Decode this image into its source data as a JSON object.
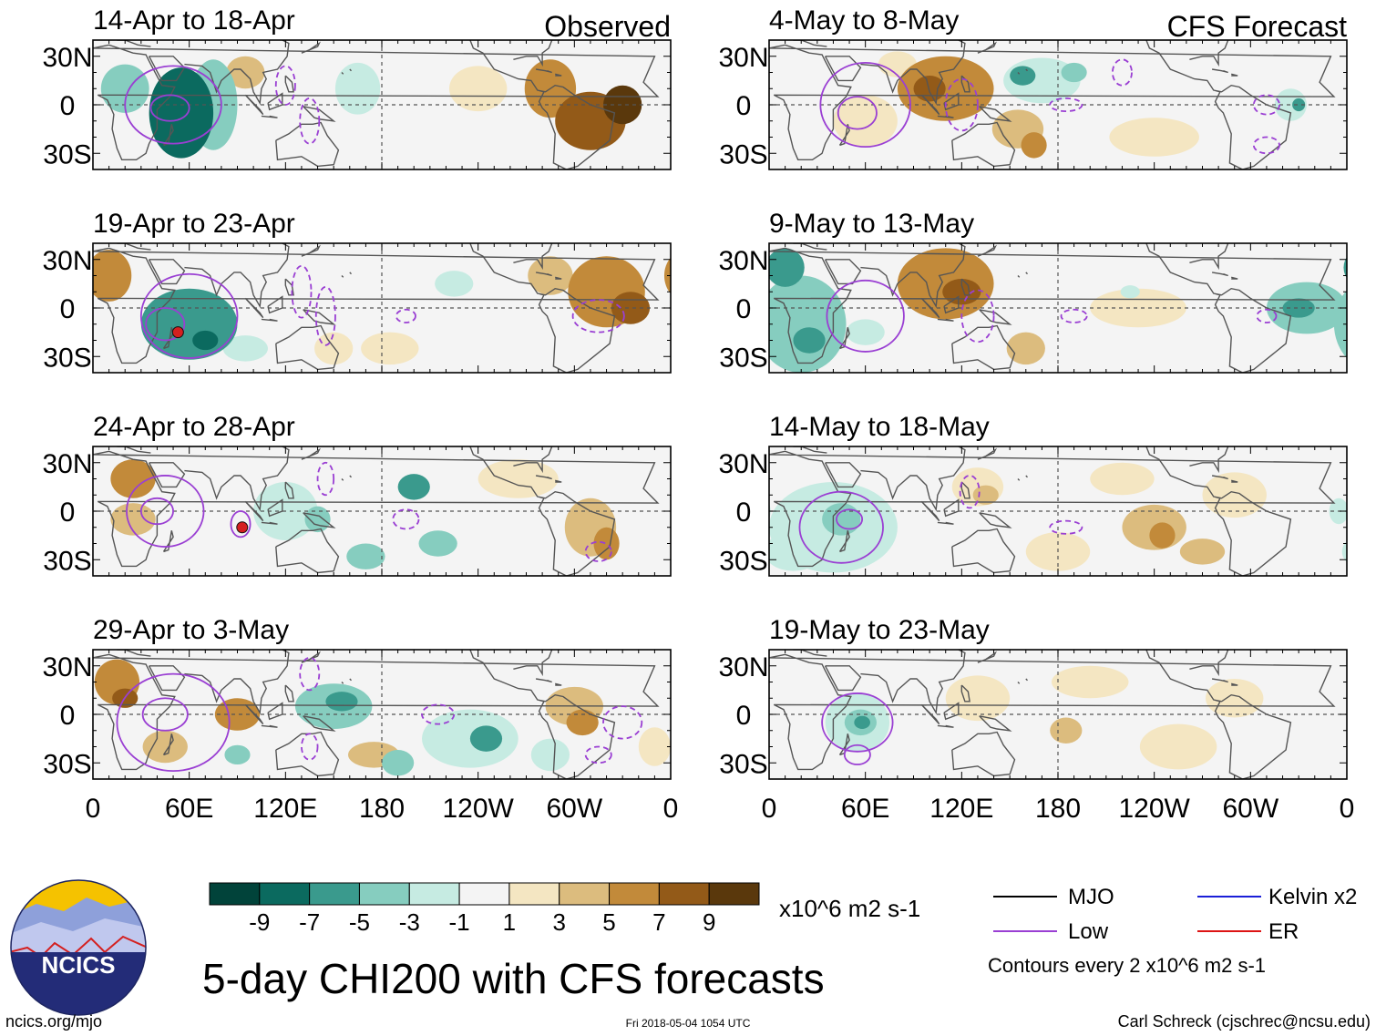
{
  "colors": {
    "scale": [
      "#01433a",
      "#0b6a5f",
      "#3a9a8d",
      "#86cdbf",
      "#c6ebe2",
      "#f4f4f4",
      "#f4e6c2",
      "#dcbc7e",
      "#c28a3a",
      "#935a18",
      "#5a380c"
    ],
    "mjo": "#000000",
    "low": "#9a3fd3",
    "kelvin": "#1a1fd8",
    "er": "#dd1414",
    "coast": "#555555",
    "grid": "#555555"
  },
  "chart_data": {
    "type": "heatmap",
    "variable": "5-day CHI200 with CFS forecasts",
    "units": "x10^6 m2 s-1",
    "colorbar": {
      "boundaries": [
        -10,
        -8,
        -6,
        -4,
        -2,
        0,
        2,
        4,
        6,
        8,
        10
      ],
      "tick_labels": [
        "-9",
        "-7",
        "-5",
        "-3",
        "-1",
        "1",
        "3",
        "5",
        "7",
        "9"
      ]
    },
    "x_ticks": [
      "0",
      "60E",
      "120E",
      "180",
      "120W",
      "60W",
      "0"
    ],
    "y_ticks": [
      "30N",
      "0",
      "30S"
    ],
    "xlim": [
      0,
      360
    ],
    "ylim": [
      -40,
      40
    ],
    "column_headers": [
      "Observed",
      "CFS Forecast"
    ],
    "panels": [
      {
        "period": "14-Apr to 18-Apr",
        "source": "Observed",
        "anomalies": [
          [
            55,
            -5,
            20,
            28,
            -9
          ],
          [
            20,
            10,
            15,
            15,
            -5
          ],
          [
            75,
            0,
            15,
            28,
            -5
          ],
          [
            165,
            10,
            14,
            16,
            -3
          ],
          [
            200,
            -10,
            14,
            12,
            -1
          ],
          [
            285,
            10,
            16,
            18,
            5
          ],
          [
            310,
            -10,
            22,
            18,
            7
          ],
          [
            330,
            0,
            12,
            12,
            9
          ],
          [
            240,
            10,
            18,
            14,
            1
          ],
          [
            95,
            20,
            12,
            10,
            3
          ]
        ],
        "low_contours": [
          [
            50,
            0,
            30,
            24
          ],
          [
            48,
            -2,
            12,
            8
          ],
          [
            120,
            12,
            6,
            12
          ],
          [
            135,
            -10,
            6,
            14
          ]
        ],
        "storms": []
      },
      {
        "period": "19-Apr to 23-Apr",
        "source": "Observed",
        "anomalies": [
          [
            10,
            20,
            14,
            16,
            5
          ],
          [
            60,
            -10,
            30,
            22,
            -7
          ],
          [
            70,
            -20,
            8,
            6,
            -9
          ],
          [
            95,
            -25,
            14,
            8,
            -3
          ],
          [
            200,
            5,
            40,
            12,
            -1
          ],
          [
            225,
            15,
            12,
            8,
            -3
          ],
          [
            285,
            20,
            14,
            12,
            3
          ],
          [
            320,
            10,
            24,
            22,
            5
          ],
          [
            335,
            0,
            12,
            10,
            7
          ],
          [
            150,
            -25,
            12,
            10,
            1
          ],
          [
            185,
            -25,
            18,
            10,
            1
          ]
        ],
        "low_contours": [
          [
            60,
            -5,
            30,
            26
          ],
          [
            45,
            -10,
            12,
            10
          ],
          [
            130,
            10,
            6,
            16
          ],
          [
            145,
            -5,
            6,
            18
          ],
          [
            195,
            -5,
            6,
            4
          ],
          [
            315,
            -5,
            16,
            10
          ]
        ],
        "storms": [
          [
            53,
            -15
          ]
        ]
      },
      {
        "period": "24-Apr to 28-Apr",
        "source": "Observed",
        "anomalies": [
          [
            25,
            20,
            14,
            12,
            5
          ],
          [
            25,
            -5,
            14,
            10,
            3
          ],
          [
            120,
            0,
            20,
            18,
            -3
          ],
          [
            140,
            -5,
            8,
            8,
            -5
          ],
          [
            200,
            15,
            10,
            8,
            -7
          ],
          [
            215,
            -20,
            12,
            8,
            -5
          ],
          [
            170,
            -28,
            12,
            8,
            -5
          ],
          [
            265,
            20,
            25,
            12,
            1
          ],
          [
            310,
            -10,
            16,
            18,
            3
          ],
          [
            320,
            -20,
            8,
            10,
            5
          ],
          [
            60,
            -28,
            20,
            8,
            -1
          ]
        ],
        "low_contours": [
          [
            45,
            0,
            24,
            22
          ],
          [
            40,
            0,
            10,
            8
          ],
          [
            92,
            -8,
            6,
            8
          ],
          [
            195,
            -5,
            8,
            6
          ],
          [
            145,
            20,
            5,
            10
          ],
          [
            315,
            -25,
            8,
            6
          ]
        ],
        "storms": [
          [
            93,
            -10
          ]
        ]
      },
      {
        "period": "29-Apr to 3-May",
        "source": "Observed",
        "anomalies": [
          [
            15,
            20,
            14,
            14,
            5
          ],
          [
            20,
            10,
            8,
            6,
            7
          ],
          [
            150,
            5,
            24,
            14,
            -5
          ],
          [
            155,
            8,
            10,
            6,
            -7
          ],
          [
            235,
            -15,
            30,
            18,
            -3
          ],
          [
            245,
            -15,
            10,
            8,
            -7
          ],
          [
            190,
            -30,
            10,
            8,
            -5
          ],
          [
            300,
            5,
            18,
            12,
            3
          ],
          [
            305,
            -5,
            10,
            8,
            5
          ],
          [
            45,
            -20,
            14,
            10,
            3
          ],
          [
            90,
            0,
            14,
            10,
            5
          ],
          [
            175,
            -25,
            16,
            8,
            3
          ],
          [
            285,
            -25,
            12,
            10,
            -3
          ],
          [
            90,
            -25,
            8,
            6,
            -5
          ],
          [
            350,
            -20,
            10,
            12,
            1
          ]
        ],
        "low_contours": [
          [
            50,
            -5,
            35,
            30
          ],
          [
            45,
            0,
            14,
            10
          ],
          [
            215,
            0,
            10,
            6
          ],
          [
            330,
            -5,
            12,
            10
          ],
          [
            315,
            -25,
            8,
            5
          ],
          [
            135,
            25,
            6,
            10
          ],
          [
            135,
            -20,
            5,
            8
          ]
        ],
        "storms": []
      },
      {
        "period": "4-May to 8-May",
        "source": "CFS Forecast",
        "anomalies": [
          [
            110,
            10,
            30,
            20,
            5
          ],
          [
            100,
            10,
            10,
            8,
            7
          ],
          [
            155,
            -15,
            16,
            12,
            3
          ],
          [
            165,
            -25,
            8,
            8,
            5
          ],
          [
            170,
            15,
            24,
            14,
            -3
          ],
          [
            158,
            18,
            8,
            6,
            -7
          ],
          [
            190,
            20,
            8,
            6,
            -5
          ],
          [
            295,
            0,
            14,
            8,
            -1
          ],
          [
            325,
            0,
            10,
            10,
            -3
          ],
          [
            330,
            0,
            4,
            4,
            -7
          ],
          [
            60,
            -10,
            20,
            16,
            1
          ],
          [
            240,
            -20,
            28,
            12,
            1
          ],
          [
            80,
            25,
            12,
            8,
            1
          ]
        ],
        "low_contours": [
          [
            60,
            0,
            28,
            26
          ],
          [
            55,
            -5,
            12,
            10
          ],
          [
            120,
            0,
            10,
            16
          ],
          [
            185,
            0,
            10,
            4
          ],
          [
            220,
            20,
            6,
            8
          ],
          [
            310,
            0,
            8,
            6
          ],
          [
            310,
            -25,
            8,
            5
          ]
        ],
        "storms": []
      },
      {
        "period": "9-May to 13-May",
        "source": "CFS Forecast",
        "anomalies": [
          [
            20,
            -10,
            28,
            30,
            -5
          ],
          [
            10,
            25,
            12,
            12,
            -7
          ],
          [
            25,
            -20,
            10,
            8,
            -7
          ],
          [
            60,
            -15,
            12,
            8,
            -3
          ],
          [
            110,
            15,
            30,
            22,
            5
          ],
          [
            120,
            10,
            12,
            8,
            7
          ],
          [
            160,
            -25,
            12,
            10,
            3
          ],
          [
            230,
            0,
            30,
            12,
            1
          ],
          [
            225,
            10,
            6,
            4,
            -3
          ],
          [
            335,
            0,
            25,
            16,
            -5
          ],
          [
            330,
            0,
            10,
            6,
            -7
          ],
          [
            290,
            20,
            20,
            12,
            -1
          ],
          [
            90,
            -25,
            16,
            8,
            -1
          ]
        ],
        "low_contours": [
          [
            60,
            -5,
            24,
            22
          ],
          [
            130,
            -5,
            10,
            16
          ],
          [
            190,
            -5,
            8,
            4
          ],
          [
            310,
            -5,
            6,
            4
          ]
        ],
        "storms": []
      },
      {
        "period": "14-May to 18-May",
        "source": "CFS Forecast",
        "anomalies": [
          [
            40,
            -10,
            40,
            28,
            -3
          ],
          [
            45,
            -5,
            12,
            10,
            -5
          ],
          [
            15,
            -25,
            18,
            12,
            -3
          ],
          [
            130,
            15,
            16,
            12,
            1
          ],
          [
            135,
            10,
            8,
            6,
            3
          ],
          [
            240,
            -10,
            20,
            14,
            3
          ],
          [
            245,
            -15,
            8,
            8,
            5
          ],
          [
            290,
            10,
            20,
            14,
            1
          ],
          [
            180,
            -25,
            20,
            12,
            1
          ],
          [
            270,
            -25,
            14,
            8,
            3
          ],
          [
            355,
            0,
            6,
            8,
            -3
          ],
          [
            220,
            20,
            20,
            10,
            1
          ]
        ],
        "low_contours": [
          [
            45,
            -10,
            26,
            22
          ],
          [
            50,
            -5,
            8,
            6
          ],
          [
            125,
            12,
            6,
            10
          ],
          [
            185,
            -10,
            10,
            4
          ]
        ],
        "storms": []
      },
      {
        "period": "19-May to 23-May",
        "source": "CFS Forecast",
        "anomalies": [
          [
            55,
            -5,
            20,
            18,
            -3
          ],
          [
            57,
            -5,
            10,
            8,
            -5
          ],
          [
            58,
            -5,
            5,
            4,
            -7
          ],
          [
            130,
            10,
            20,
            14,
            1
          ],
          [
            185,
            -10,
            10,
            8,
            3
          ],
          [
            255,
            -20,
            24,
            14,
            1
          ],
          [
            290,
            10,
            18,
            12,
            1
          ],
          [
            200,
            20,
            24,
            10,
            1
          ],
          [
            30,
            20,
            14,
            10,
            -1
          ],
          [
            350,
            0,
            10,
            10,
            -1
          ]
        ],
        "low_contours": [
          [
            55,
            -5,
            22,
            18
          ],
          [
            55,
            -25,
            8,
            6
          ]
        ],
        "storms": []
      }
    ]
  },
  "legend": {
    "items": [
      {
        "label": "MJO",
        "color": "#000000"
      },
      {
        "label": "Kelvin x2",
        "color": "#1a1fd8"
      },
      {
        "label": "Low",
        "color": "#9a3fd3"
      },
      {
        "label": "ER",
        "color": "#dd1414"
      }
    ],
    "contour_note": "Contours every 2 x10^6 m2 s-1"
  },
  "logo": {
    "text": "NCICS"
  },
  "footer": {
    "url": "ncics.org/mjo",
    "timestamp": "Fri 2018-05-04 1054 UTC",
    "author": "Carl Schreck (cjschrec@ncsu.edu)"
  },
  "main_title": "5-day CHI200 with CFS forecasts"
}
